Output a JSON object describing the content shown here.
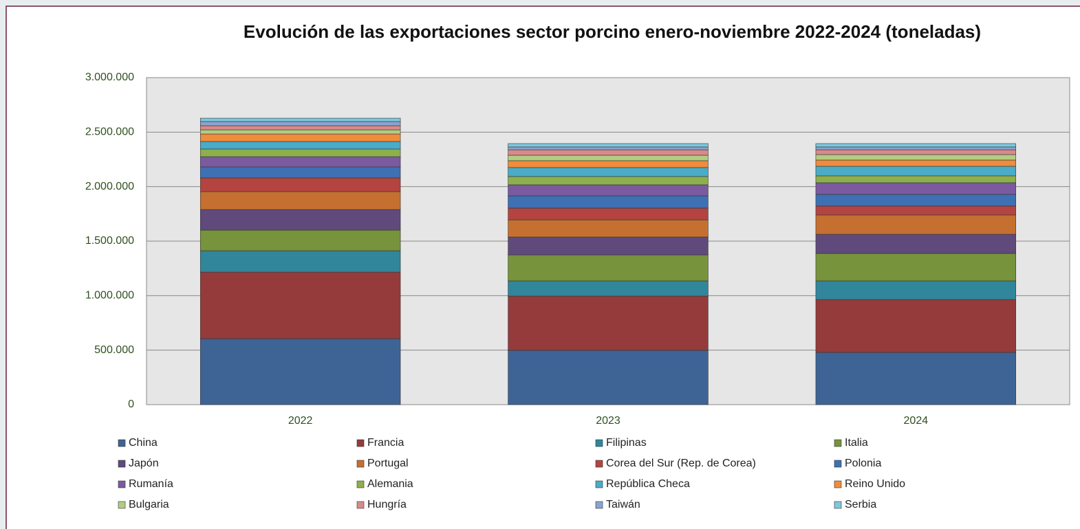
{
  "chart_data": {
    "type": "stacked_bar",
    "title": "Evolución de las exportaciones sector porcino enero-noviembre  2022-2024 (toneladas)",
    "categories": [
      "2022",
      "2023",
      "2024"
    ],
    "ylim": [
      0,
      3000000
    ],
    "yticks": [
      {
        "value": 0,
        "label": "0"
      },
      {
        "value": 500000,
        "label": "500.000"
      },
      {
        "value": 1000000,
        "label": "1.000.000"
      },
      {
        "value": 1500000,
        "label": "1.500.000"
      },
      {
        "value": 2000000,
        "label": "2.000.000"
      },
      {
        "value": 2500000,
        "label": "2.500.000"
      },
      {
        "value": 3000000,
        "label": "3.000.000"
      }
    ],
    "grid": true,
    "legend": "bottom",
    "series": [
      {
        "name": "China",
        "color": "#3e6496",
        "values": [
          605000,
          498000,
          479000
        ]
      },
      {
        "name": "Francia",
        "color": "#953b3b",
        "values": [
          611000,
          498000,
          485000
        ]
      },
      {
        "name": "Filipinas",
        "color": "#31869b",
        "values": [
          196000,
          139000,
          171000
        ]
      },
      {
        "name": "Italia",
        "color": "#77933c",
        "values": [
          189000,
          239000,
          252000
        ]
      },
      {
        "name": "Japón",
        "color": "#604a7b",
        "values": [
          189000,
          164000,
          176000
        ]
      },
      {
        "name": "Portugal",
        "color": "#c57030",
        "values": [
          164000,
          157000,
          177000
        ]
      },
      {
        "name": "Corea del Sur (Rep. de Corea)",
        "color": "#b44441",
        "values": [
          126000,
          108000,
          82000
        ]
      },
      {
        "name": "Polonia",
        "color": "#3e70b3",
        "values": [
          101000,
          113000,
          107000
        ]
      },
      {
        "name": "Rumanía",
        "color": "#7b5aa0",
        "values": [
          94000,
          101000,
          107000
        ]
      },
      {
        "name": "Alemania",
        "color": "#8db04d",
        "values": [
          70000,
          76000,
          63000
        ]
      },
      {
        "name": "República Checa",
        "color": "#4aacc6",
        "values": [
          69000,
          82000,
          88000
        ]
      },
      {
        "name": "Reino Unido",
        "color": "#f08c3c",
        "values": [
          69000,
          63000,
          57000
        ]
      },
      {
        "name": "Bulgaria",
        "color": "#b2cd82",
        "values": [
          38000,
          50000,
          50000
        ]
      },
      {
        "name": "Hungría",
        "color": "#d98a8a",
        "values": [
          38000,
          50000,
          44000
        ]
      },
      {
        "name": "Taiwán",
        "color": "#8aa4cf",
        "values": [
          38000,
          26000,
          26000
        ]
      },
      {
        "name": "Serbia",
        "color": "#7fc7dd",
        "values": [
          31000,
          31000,
          31000
        ]
      }
    ]
  }
}
